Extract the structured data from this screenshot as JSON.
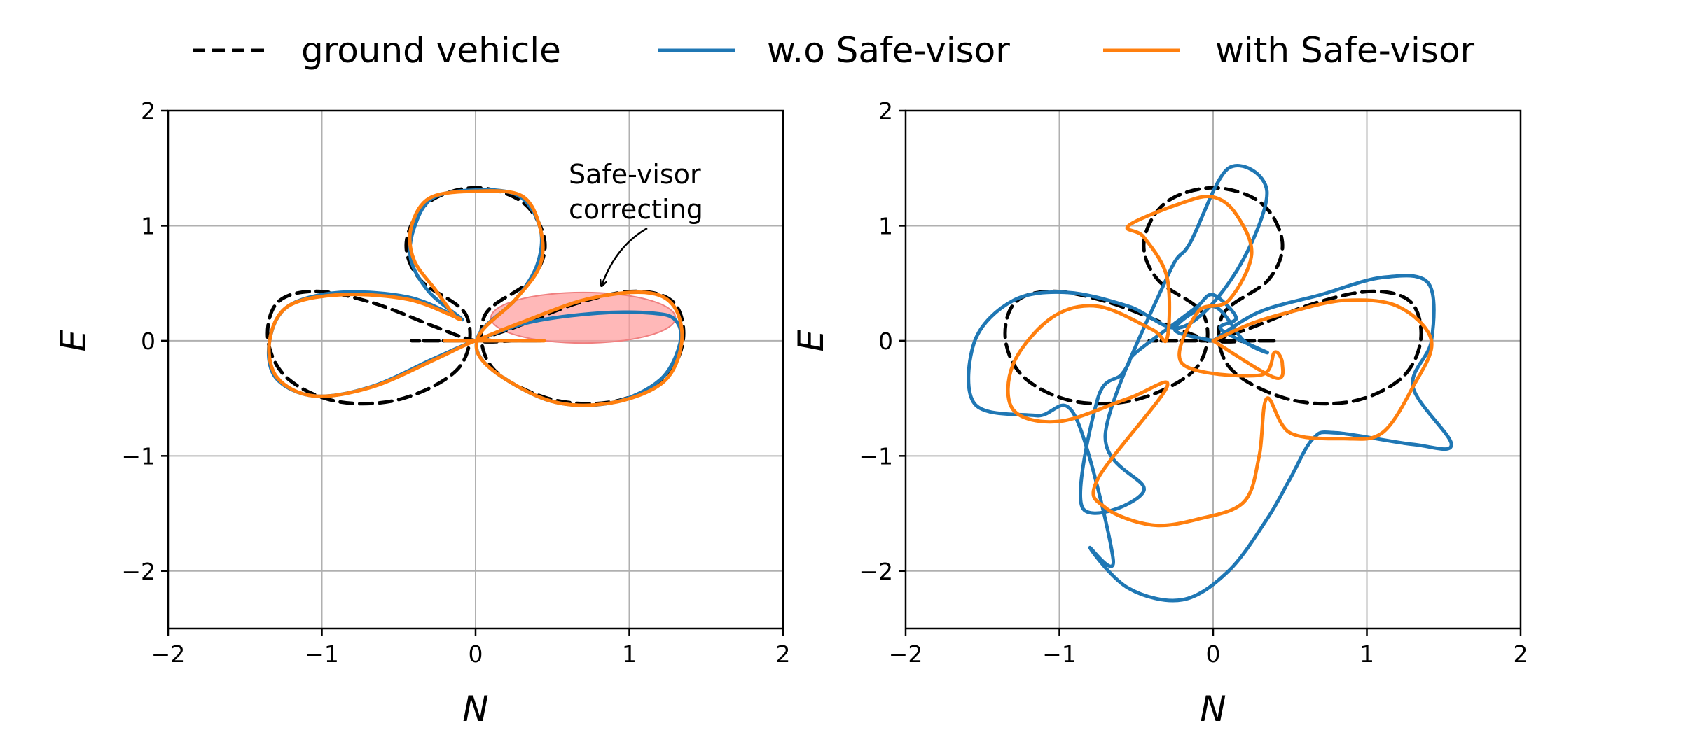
{
  "chart_data": {
    "legend": {
      "placement": "top-center",
      "entries": [
        {
          "label": "ground vehicle",
          "color": "#000000",
          "style": "dashed"
        },
        {
          "label": "w.o Safe-visor",
          "color": "#1f77b4",
          "style": "solid"
        },
        {
          "label": "with Safe-visor",
          "color": "#ff7f0e",
          "style": "solid"
        }
      ]
    },
    "panels": [
      {
        "type": "line",
        "xlabel": "N",
        "ylabel": "E",
        "xlim": [
          -2,
          2
        ],
        "ylim": [
          -2.5,
          2
        ],
        "xticks": [
          -2,
          -1,
          0,
          1,
          2
        ],
        "yticks": [
          -2,
          -1,
          0,
          1,
          2
        ],
        "xtick_labels": [
          "−2",
          "−1",
          "0",
          "1",
          "2"
        ],
        "ytick_labels": [
          "−2",
          "−1",
          "0",
          "1",
          "2"
        ],
        "grid": true,
        "annotation": {
          "lines": [
            "Safe-visor",
            "correcting"
          ],
          "arrow_target": {
            "x": 0.82,
            "y": 0.48
          },
          "highlight_ellipse": {
            "cx": 0.7,
            "cy": 0.2,
            "rx": 0.6,
            "ry": 0.22,
            "color": "#ff9a9a"
          }
        },
        "series": [
          {
            "name": "ground vehicle",
            "color": "#000000",
            "dash": true,
            "x": [
              0,
              0.26,
              0.67,
              1.04,
              1.29,
              1.35,
              1.22,
              0.89,
              0.47,
              0.1,
              0.06,
              0.36,
              0.45,
              0.31,
              0,
              -0.31,
              -0.45,
              -0.36,
              -0.06,
              -0.1,
              -0.47,
              -0.89,
              -1.22,
              -1.35,
              -1.29,
              -1.04,
              -0.67,
              -0.26,
              0,
              0.26,
              0.4,
              0.38,
              0.18,
              -0.12,
              -0.38,
              -0.4,
              -0.26,
              -0.02,
              0.02,
              0.26,
              0.4,
              0.38,
              0.18,
              -0.12,
              -0.38,
              -0.4,
              -0.26,
              -0.02,
              0
            ],
            "y": [
              0,
              0.12,
              0.33,
              0.43,
              0.33,
              0,
              -0.33,
              -0.53,
              -0.5,
              -0.22,
              0.22,
              0.53,
              0.86,
              1.2,
              1.33,
              1.2,
              0.86,
              0.53,
              0.22,
              -0.22,
              -0.5,
              -0.53,
              -0.33,
              0,
              0.33,
              0.43,
              0.33,
              0.12,
              0,
              0,
              0,
              0,
              0,
              0,
              0,
              0,
              0,
              0,
              0,
              0,
              0,
              0,
              0,
              0,
              0,
              0,
              0,
              0,
              0
            ]
          },
          {
            "name": "w.o Safe-visor",
            "color": "#1f77b4",
            "dash": false,
            "x": [
              0,
              0.35,
              0.8,
              1.15,
              1.3,
              1.33,
              1.2,
              0.88,
              0.48,
              0.08,
              0.02,
              0.26,
              0.4,
              0.42,
              0.28,
              0,
              -0.28,
              -0.4,
              -0.42,
              -0.3,
              -0.1,
              -0.14,
              -0.44,
              -0.88,
              -1.22,
              -1.34,
              -1.3,
              -1.05,
              -0.68,
              -0.28,
              0,
              0.12,
              0.2,
              0.3,
              0.4,
              -0.2
            ],
            "y": [
              0,
              0.16,
              0.24,
              0.24,
              0.18,
              -0.02,
              -0.34,
              -0.54,
              -0.52,
              -0.22,
              0.05,
              0.36,
              0.66,
              0.98,
              1.26,
              1.31,
              1.24,
              0.98,
              0.7,
              0.42,
              0.2,
              0.22,
              0.38,
              0.42,
              0.3,
              0,
              -0.32,
              -0.48,
              -0.4,
              -0.16,
              0,
              0,
              0,
              0,
              0,
              0
            ]
          },
          {
            "name": "with Safe-visor",
            "color": "#ff7f0e",
            "dash": false,
            "x": [
              0,
              0.3,
              0.72,
              1.1,
              1.29,
              1.34,
              1.22,
              0.88,
              0.48,
              0.08,
              0.02,
              0.26,
              0.42,
              0.42,
              0.3,
              0,
              -0.3,
              -0.42,
              -0.4,
              -0.26,
              -0.14,
              -0.12,
              -0.44,
              -0.88,
              -1.22,
              -1.34,
              -1.29,
              -1.05,
              -0.67,
              -0.26,
              0,
              0.12,
              0.22,
              0.32,
              0.42,
              -0.2
            ],
            "y": [
              0,
              0.16,
              0.36,
              0.42,
              0.3,
              -0.02,
              -0.36,
              -0.54,
              -0.52,
              -0.22,
              0.04,
              0.36,
              0.66,
              0.98,
              1.26,
              1.3,
              1.24,
              0.98,
              0.7,
              0.44,
              0.22,
              0.2,
              0.36,
              0.4,
              0.3,
              0,
              -0.32,
              -0.48,
              -0.4,
              -0.16,
              0,
              0,
              0,
              0,
              0,
              0
            ]
          }
        ]
      },
      {
        "type": "line",
        "xlabel": "N",
        "ylabel": "E",
        "xlim": [
          -2,
          2
        ],
        "ylim": [
          -2.5,
          2
        ],
        "xticks": [
          -2,
          -1,
          0,
          1,
          2
        ],
        "yticks": [
          -2,
          -1,
          0,
          1,
          2
        ],
        "xtick_labels": [
          "−2",
          "−1",
          "0",
          "1",
          "2"
        ],
        "ytick_labels": [
          "−2",
          "−1",
          "0",
          "1",
          "2"
        ],
        "grid": true,
        "series": [
          {
            "name": "ground vehicle",
            "color": "#000000",
            "dash": true,
            "x": [
              0,
              0.26,
              0.67,
              1.04,
              1.29,
              1.35,
              1.22,
              0.89,
              0.47,
              0.1,
              0.06,
              0.36,
              0.45,
              0.31,
              0,
              -0.31,
              -0.45,
              -0.36,
              -0.06,
              -0.1,
              -0.47,
              -0.89,
              -1.22,
              -1.35,
              -1.29,
              -1.04,
              -0.67,
              -0.26,
              0,
              0.26,
              0.4,
              0.38,
              0.18,
              -0.12,
              -0.38,
              -0.4,
              -0.26,
              -0.02,
              0.02,
              0.26,
              0.4,
              0.38,
              0.18,
              -0.12,
              -0.38,
              -0.4,
              -0.26,
              -0.02,
              0
            ],
            "y": [
              0,
              0.12,
              0.33,
              0.43,
              0.33,
              0,
              -0.33,
              -0.53,
              -0.5,
              -0.22,
              0.22,
              0.53,
              0.86,
              1.2,
              1.33,
              1.2,
              0.86,
              0.53,
              0.22,
              -0.22,
              -0.5,
              -0.53,
              -0.33,
              0,
              0.33,
              0.43,
              0.33,
              0.12,
              0,
              0,
              0,
              0,
              0,
              0,
              0,
              0,
              0,
              0,
              0,
              0,
              0,
              0,
              0,
              0,
              0,
              0,
              0,
              0,
              0
            ]
          },
          {
            "name": "w.o Safe-visor",
            "color": "#1f77b4",
            "dash": false,
            "x": [
              0,
              0.3,
              0.7,
              1.1,
              1.4,
              1.42,
              1.3,
              1.55,
              1.3,
              0.8,
              0.65,
              0.5,
              0.35,
              0.1,
              -0.2,
              -0.55,
              -0.8,
              -0.65,
              -0.9,
              -1.15,
              -1.55,
              -1.55,
              -1.3,
              -0.95,
              -0.55,
              -0.2,
              0.15,
              0.35,
              0.1,
              -0.15,
              -0.3,
              -0.7,
              -0.45,
              -0.85,
              -0.75,
              -0.6,
              -0.55,
              -0.5,
              -0.2,
              -0.1,
              0,
              0.15,
              0.05,
              0.35,
              0.2,
              0,
              -0.25,
              0
            ],
            "y": [
              0,
              0.25,
              0.4,
              0.55,
              0.5,
              0,
              -0.4,
              -0.9,
              -0.9,
              -0.8,
              -0.85,
              -1.2,
              -1.55,
              -2.0,
              -2.25,
              -2.15,
              -1.8,
              -1.9,
              -0.65,
              -0.65,
              -0.55,
              0,
              0.35,
              0.42,
              0.3,
              0.12,
              0.6,
              1.3,
              1.5,
              0.85,
              0.55,
              -0.8,
              -1.3,
              -1.45,
              -0.5,
              -0.3,
              -0.2,
              -0.1,
              0.2,
              0.3,
              0.4,
              0.2,
              0.1,
              -0.1,
              0,
              0.3,
              0.1,
              0
            ]
          },
          {
            "name": "with Safe-visor",
            "color": "#ff7f0e",
            "dash": false,
            "x": [
              0,
              0.25,
              0.5,
              0.85,
              1.2,
              1.42,
              1.3,
              1.1,
              0.85,
              0.5,
              0.35,
              0.3,
              0.2,
              -0.1,
              -0.4,
              -0.7,
              -0.75,
              -0.3,
              -0.55,
              -1.0,
              -1.3,
              -1.3,
              -1.05,
              -0.75,
              -0.4,
              -0.3,
              -0.3,
              -0.45,
              -0.55,
              -0.2,
              0,
              0.15,
              0.25,
              0.1,
              -0.1,
              -0.2,
              0.3,
              0.4,
              0.45,
              0.4,
              0
            ],
            "y": [
              0,
              0.15,
              0.25,
              0.35,
              0.3,
              0,
              -0.4,
              -0.8,
              -0.85,
              -0.8,
              -0.5,
              -1.0,
              -1.4,
              -1.55,
              -1.6,
              -1.45,
              -1.2,
              -0.4,
              -0.5,
              -0.7,
              -0.6,
              -0.2,
              0.2,
              0.3,
              0.1,
              0.02,
              0.55,
              0.9,
              1.0,
              1.2,
              1.25,
              1.1,
              0.75,
              0.35,
              0.25,
              -0.2,
              -0.3,
              -0.1,
              -0.2,
              -0.32,
              0
            ]
          }
        ]
      }
    ]
  }
}
